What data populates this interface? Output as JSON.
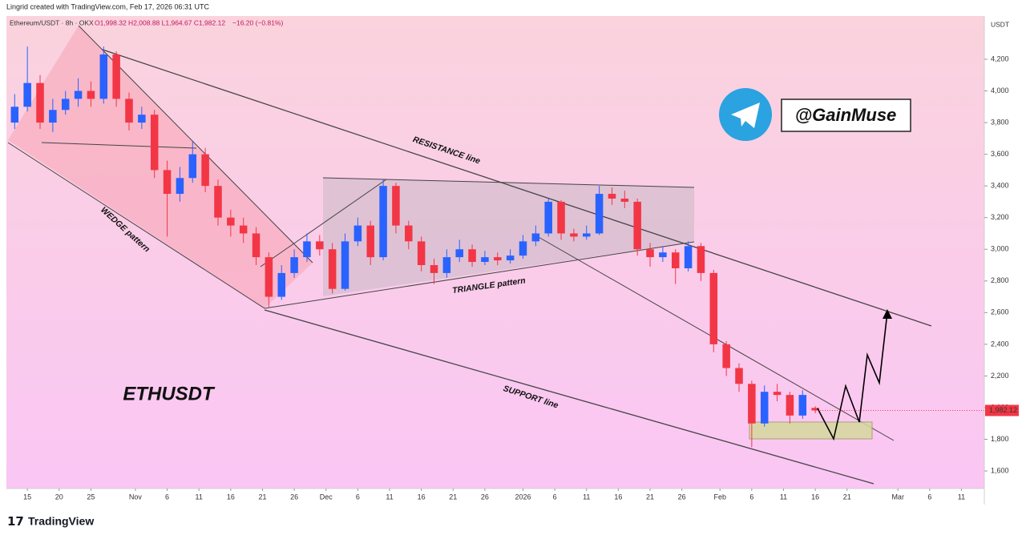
{
  "header": "Lingrid created with TradingView.com, Feb 17, 2026 06:31 UTC",
  "footer_logo": "TradingView",
  "chart_data": {
    "type": "candlestick",
    "symbol": "Ethereum/USDT · 8h · OKX",
    "header_ohlc": "O1,998.32  H2,008.88  L1,964.67  C1,982.12",
    "change": "−16.20 (−0.81%)",
    "axis_unit": "USDT",
    "last_price_label": "1,982.12",
    "title": "ETHUSDT",
    "watermark": "@GainMuse",
    "annotations": [
      "RESISTANCE line",
      "WEDGE pattern",
      "TRIANGLE pattern",
      "SUPPORT line"
    ],
    "up_color": "#2962ff",
    "down_color": "#f23645",
    "x": [
      0,
      1,
      2,
      3,
      4,
      5,
      6,
      7,
      8,
      9,
      10,
      11,
      12,
      13,
      14,
      15,
      16,
      17,
      18,
      19,
      20,
      21,
      22,
      23,
      24,
      25,
      26,
      27,
      28,
      29,
      30,
      31,
      32,
      33,
      34,
      35,
      36,
      37,
      38,
      39,
      40,
      41,
      42,
      43,
      44,
      45,
      46,
      47,
      48,
      49,
      50,
      51,
      52,
      53,
      54,
      55,
      56,
      57,
      58,
      59,
      60,
      61,
      62,
      63
    ],
    "open": [
      3800,
      3900,
      4050,
      3800,
      3880,
      3950,
      4000,
      3950,
      4230,
      3950,
      3800,
      3850,
      3500,
      3350,
      3450,
      3600,
      3400,
      3200,
      3150,
      3100,
      2950,
      2700,
      2850,
      2950,
      3050,
      3000,
      2750,
      3050,
      3150,
      2950,
      3400,
      3150,
      3050,
      2900,
      2850,
      2950,
      3000,
      2920,
      2950,
      2930,
      2960,
      3050,
      3100,
      3300,
      3100,
      3080,
      3100,
      3350,
      3320,
      3300,
      3000,
      2950,
      2980,
      2880,
      3020,
      2850,
      2400,
      2250,
      2150,
      1900,
      2100,
      2080,
      1950,
      1998.32
    ],
    "high": [
      3980,
      4280,
      4100,
      3950,
      4000,
      4080,
      4060,
      4280,
      4250,
      3990,
      3900,
      3880,
      3560,
      3520,
      3680,
      3640,
      3440,
      3250,
      3200,
      3140,
      2980,
      2900,
      3000,
      3100,
      3090,
      3040,
      3100,
      3200,
      3180,
      3440,
      3420,
      3180,
      3080,
      2940,
      3000,
      3060,
      3030,
      2990,
      2980,
      3000,
      3090,
      3150,
      3320,
      3310,
      3130,
      3150,
      3400,
      3390,
      3370,
      3320,
      3040,
      3020,
      3000,
      3050,
      3040,
      2870,
      2420,
      2280,
      2170,
      2140,
      2150,
      2100,
      2110,
      2008.88
    ],
    "low": [
      3760,
      3870,
      3760,
      3740,
      3850,
      3900,
      3900,
      3920,
      3900,
      3750,
      3760,
      3450,
      3080,
      3300,
      3420,
      3360,
      3150,
      3080,
      3040,
      2900,
      2630,
      2680,
      2820,
      2920,
      2960,
      2720,
      2740,
      3020,
      2900,
      2930,
      3100,
      3000,
      2860,
      2780,
      2820,
      2920,
      2890,
      2900,
      2900,
      2910,
      2940,
      3020,
      3080,
      3060,
      3050,
      3060,
      3090,
      3280,
      3260,
      2960,
      2890,
      2920,
      2780,
      2860,
      2800,
      2350,
      2200,
      2100,
      1750,
      1880,
      2040,
      1900,
      1930,
      1964.67
    ],
    "close": [
      3900,
      4050,
      3800,
      3880,
      3950,
      4000,
      3950,
      4230,
      3950,
      3800,
      3850,
      3500,
      3350,
      3450,
      3600,
      3400,
      3200,
      3150,
      3100,
      2950,
      2700,
      2850,
      2950,
      3050,
      3000,
      2750,
      3050,
      3150,
      2950,
      3400,
      3150,
      3050,
      2900,
      2850,
      2950,
      3000,
      2920,
      2950,
      2930,
      2960,
      3050,
      3100,
      3300,
      3100,
      3080,
      3100,
      3350,
      3320,
      3300,
      3000,
      2950,
      2980,
      2880,
      3020,
      2850,
      2400,
      2250,
      2150,
      1900,
      2100,
      2080,
      1950,
      2080,
      1982.12
    ],
    "xlim": [
      -0.65,
      76.3
    ],
    "xticks": [
      {
        "value": 1,
        "label": "15"
      },
      {
        "value": 3.5,
        "label": "20"
      },
      {
        "value": 6,
        "label": "25"
      },
      {
        "value": 9.5,
        "label": "Nov"
      },
      {
        "value": 12,
        "label": "6"
      },
      {
        "value": 14.5,
        "label": "11"
      },
      {
        "value": 17,
        "label": "16"
      },
      {
        "value": 19.5,
        "label": "21"
      },
      {
        "value": 22,
        "label": "26"
      },
      {
        "value": 24.5,
        "label": "Dec"
      },
      {
        "value": 27,
        "label": "6"
      },
      {
        "value": 29.5,
        "label": "11"
      },
      {
        "value": 32,
        "label": "16"
      },
      {
        "value": 34.5,
        "label": "21"
      },
      {
        "value": 37,
        "label": "26"
      },
      {
        "value": 40,
        "label": "2026"
      },
      {
        "value": 42.5,
        "label": "6"
      },
      {
        "value": 45,
        "label": "11"
      },
      {
        "value": 47.5,
        "label": "16"
      },
      {
        "value": 50,
        "label": "21"
      },
      {
        "value": 52.5,
        "label": "26"
      },
      {
        "value": 55.5,
        "label": "Feb"
      },
      {
        "value": 58,
        "label": "6"
      },
      {
        "value": 60.5,
        "label": "11"
      },
      {
        "value": 63,
        "label": "16"
      },
      {
        "value": 65.5,
        "label": "21"
      },
      {
        "value": 69.5,
        "label": "Mar"
      },
      {
        "value": 72,
        "label": "6"
      },
      {
        "value": 74.5,
        "label": "11"
      }
    ],
    "ylim": [
      1489,
      4473
    ],
    "yticks": [
      {
        "value": 1600,
        "label": "1,600"
      },
      {
        "value": 1800,
        "label": "1,800"
      },
      {
        "value": 2000,
        "label": "2,000"
      },
      {
        "value": 2200,
        "label": "2,200"
      },
      {
        "value": 2400,
        "label": "2,400"
      },
      {
        "value": 2600,
        "label": "2,600"
      },
      {
        "value": 2800,
        "label": "2,800"
      },
      {
        "value": 3000,
        "label": "3,000"
      },
      {
        "value": 3200,
        "label": "3,200"
      },
      {
        "value": 3400,
        "label": "3,400"
      },
      {
        "value": 3600,
        "label": "3,600"
      },
      {
        "value": 3800,
        "label": "3,800"
      },
      {
        "value": 4000,
        "label": "4,000"
      },
      {
        "value": 4200,
        "label": "4,200"
      }
    ]
  }
}
